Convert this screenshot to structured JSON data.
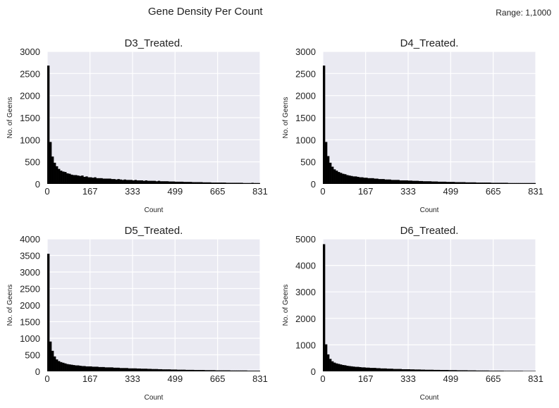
{
  "figure": {
    "title": "Gene Density Per Count",
    "note": "Range: 1,1000"
  },
  "colors": {
    "plot_bg": "#eaeaf2",
    "grid": "#ffffff",
    "bar": "#000000"
  },
  "chart_data": [
    {
      "type": "bar",
      "title": "D3_Treated.",
      "xlabel": "Count",
      "ylabel": "No. of Geens",
      "xlim": [
        0,
        831
      ],
      "ylim": [
        0,
        3000
      ],
      "xticks": [
        0,
        167,
        333,
        499,
        665,
        831
      ],
      "yticks": [
        0,
        500,
        1000,
        1500,
        2000,
        2500,
        3000
      ],
      "grid": true,
      "bin_width": 8.3,
      "values": [
        2680,
        950,
        620,
        480,
        400,
        340,
        300,
        280,
        270,
        240,
        230,
        210,
        200,
        200,
        190,
        180,
        190,
        160,
        170,
        150,
        150,
        140,
        150,
        130,
        130,
        130,
        120,
        120,
        120,
        120,
        110,
        110,
        100,
        110,
        100,
        90,
        100,
        90,
        90,
        90,
        80,
        90,
        80,
        80,
        80,
        70,
        80,
        70,
        70,
        70,
        70,
        60,
        70,
        60,
        60,
        60,
        60,
        55,
        55,
        55,
        50,
        50,
        50,
        50,
        45,
        45,
        45,
        45,
        40,
        40,
        40,
        40,
        40,
        35,
        35,
        35,
        35,
        30,
        30,
        30,
        30,
        30,
        30,
        30,
        25,
        25,
        25,
        25,
        25,
        25,
        25,
        25,
        20,
        20,
        20,
        20,
        25,
        20,
        20,
        20
      ]
    },
    {
      "type": "bar",
      "title": "D4_Treated.",
      "xlabel": "Count",
      "ylabel": "No. of Geens",
      "xlim": [
        0,
        831
      ],
      "ylim": [
        0,
        3000
      ],
      "xticks": [
        0,
        167,
        333,
        499,
        665,
        831
      ],
      "yticks": [
        0,
        500,
        1000,
        1500,
        2000,
        2500,
        3000
      ],
      "grid": true,
      "bin_width": 8.3,
      "values": [
        2680,
        950,
        630,
        480,
        390,
        330,
        300,
        270,
        250,
        230,
        220,
        200,
        190,
        180,
        170,
        170,
        160,
        150,
        150,
        140,
        140,
        130,
        130,
        130,
        120,
        120,
        110,
        110,
        110,
        100,
        100,
        100,
        90,
        90,
        90,
        90,
        80,
        80,
        80,
        80,
        75,
        75,
        70,
        70,
        70,
        65,
        65,
        60,
        60,
        60,
        60,
        55,
        55,
        55,
        50,
        50,
        50,
        50,
        45,
        45,
        45,
        45,
        40,
        40,
        40,
        40,
        40,
        35,
        35,
        35,
        35,
        35,
        30,
        30,
        30,
        30,
        30,
        30,
        30,
        25,
        25,
        25,
        25,
        25,
        25,
        25,
        25,
        20,
        20,
        20,
        20,
        20,
        20,
        20,
        20,
        20,
        20,
        20,
        20,
        20
      ]
    },
    {
      "type": "bar",
      "title": "D5_Treated.",
      "xlabel": "Count",
      "ylabel": "No. of Geens",
      "xlim": [
        0,
        831
      ],
      "ylim": [
        0,
        4000
      ],
      "xticks": [
        0,
        167,
        333,
        499,
        665,
        831
      ],
      "yticks": [
        0,
        500,
        1000,
        1500,
        2000,
        2500,
        3000,
        3500,
        4000
      ],
      "grid": true,
      "bin_width": 8.3,
      "values": [
        3550,
        900,
        620,
        450,
        360,
        310,
        280,
        260,
        240,
        220,
        210,
        200,
        190,
        180,
        180,
        170,
        160,
        160,
        150,
        150,
        150,
        140,
        140,
        140,
        130,
        130,
        130,
        120,
        120,
        120,
        120,
        110,
        110,
        110,
        100,
        100,
        100,
        100,
        90,
        90,
        90,
        90,
        85,
        85,
        80,
        80,
        80,
        75,
        75,
        70,
        70,
        70,
        65,
        65,
        60,
        60,
        60,
        60,
        55,
        55,
        55,
        50,
        50,
        50,
        50,
        45,
        45,
        45,
        45,
        40,
        40,
        40,
        40,
        40,
        35,
        35,
        35,
        35,
        35,
        30,
        30,
        30,
        30,
        30,
        30,
        30,
        25,
        25,
        25,
        25,
        25,
        25,
        25,
        25,
        20,
        20,
        20,
        20,
        20,
        20
      ]
    },
    {
      "type": "bar",
      "title": "D6_Treated.",
      "xlabel": "Count",
      "ylabel": "No. of Geens",
      "xlim": [
        0,
        831
      ],
      "ylim": [
        0,
        5000
      ],
      "xticks": [
        0,
        167,
        333,
        499,
        665,
        831
      ],
      "yticks": [
        0,
        1000,
        2000,
        3000,
        4000,
        5000
      ],
      "grid": true,
      "bin_width": 8.3,
      "values": [
        4800,
        1020,
        640,
        470,
        380,
        330,
        300,
        280,
        260,
        240,
        230,
        210,
        200,
        190,
        180,
        170,
        170,
        160,
        150,
        150,
        140,
        140,
        130,
        130,
        130,
        120,
        120,
        110,
        110,
        110,
        100,
        100,
        100,
        90,
        90,
        90,
        90,
        80,
        80,
        80,
        80,
        75,
        75,
        70,
        70,
        70,
        65,
        65,
        60,
        60,
        60,
        60,
        55,
        55,
        55,
        50,
        50,
        50,
        50,
        45,
        45,
        45,
        45,
        40,
        40,
        40,
        40,
        40,
        35,
        35,
        35,
        35,
        30,
        30,
        30,
        30,
        30,
        30,
        25,
        25,
        25,
        25,
        25,
        25,
        25,
        20,
        20,
        20,
        20,
        20,
        20,
        20,
        20,
        20,
        15,
        15,
        15,
        15,
        15,
        15
      ]
    }
  ]
}
